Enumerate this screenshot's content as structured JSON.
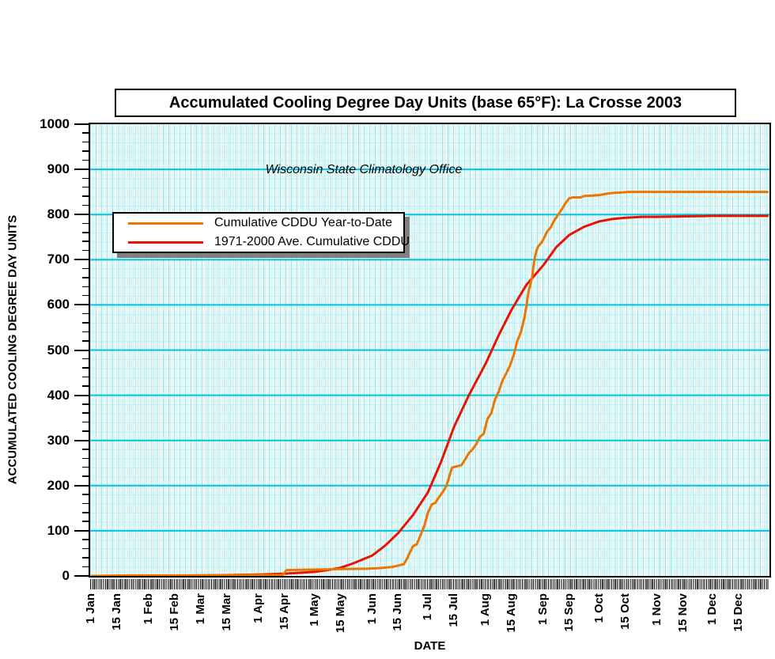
{
  "title": "Accumulated Cooling Degree Day Units (base 65°F): La Crosse 2003",
  "annotation": "Wisconsin State Climatology Office",
  "axes": {
    "x_label": "DATE",
    "y_label": "ACCUMULATED COOLING DEGREE DAY UNITS",
    "y_min": 0,
    "y_max": 1000,
    "y_major_step": 100,
    "y_minor_step": 20
  },
  "colors": {
    "ytd_line": "#ee7600",
    "average_line": "#e81400",
    "grid_major": "#00c4e4",
    "grid_minor": "#c8f4f6",
    "stripe": "#bef2f4",
    "legend_shadow": "#808080"
  },
  "chart_data": {
    "type": "line",
    "title": "Accumulated Cooling Degree Day Units (base 65°F): La Crosse 2003",
    "xlabel": "DATE",
    "ylabel": "ACCUMULATED COOLING DEGREE DAY UNITS",
    "ylim": [
      0,
      1000
    ],
    "x_unit": "day_of_year",
    "grid": true,
    "legend_position": "upper-left-inside",
    "y_ticks": [
      0,
      100,
      200,
      300,
      400,
      500,
      600,
      700,
      800,
      900,
      1000
    ],
    "x_ticks": [
      {
        "day": 1,
        "label": "1 Jan"
      },
      {
        "day": 15,
        "label": "15 Jan"
      },
      {
        "day": 32,
        "label": "1 Feb"
      },
      {
        "day": 46,
        "label": "15 Feb"
      },
      {
        "day": 60,
        "label": "1 Mar"
      },
      {
        "day": 74,
        "label": "15 Mar"
      },
      {
        "day": 91,
        "label": "1 Apr"
      },
      {
        "day": 105,
        "label": "15 Apr"
      },
      {
        "day": 121,
        "label": "1 May"
      },
      {
        "day": 135,
        "label": "15 May"
      },
      {
        "day": 152,
        "label": "1 Jun"
      },
      {
        "day": 166,
        "label": "15 Jun"
      },
      {
        "day": 182,
        "label": "1 Jul"
      },
      {
        "day": 196,
        "label": "15 Jul"
      },
      {
        "day": 213,
        "label": "1 Aug"
      },
      {
        "day": 227,
        "label": "15 Aug"
      },
      {
        "day": 244,
        "label": "1 Sep"
      },
      {
        "day": 258,
        "label": "15 Sep"
      },
      {
        "day": 274,
        "label": "1 Oct"
      },
      {
        "day": 288,
        "label": "15 Oct"
      },
      {
        "day": 305,
        "label": "1 Nov"
      },
      {
        "day": 319,
        "label": "15 Nov"
      },
      {
        "day": 335,
        "label": "1 Dec"
      },
      {
        "day": 349,
        "label": "15 Dec"
      }
    ],
    "series": [
      {
        "name": "Cumulative CDDU Year-to-Date",
        "color": "#ee7600",
        "points": [
          [
            1,
            0
          ],
          [
            20,
            1
          ],
          [
            50,
            1
          ],
          [
            90,
            2
          ],
          [
            104,
            2
          ],
          [
            106,
            13
          ],
          [
            120,
            14
          ],
          [
            134,
            15
          ],
          [
            149,
            16
          ],
          [
            155,
            17
          ],
          [
            160,
            19
          ],
          [
            163,
            20
          ],
          [
            166,
            23
          ],
          [
            169,
            26
          ],
          [
            170,
            33
          ],
          [
            171,
            40
          ],
          [
            172,
            50
          ],
          [
            173,
            58
          ],
          [
            174,
            66
          ],
          [
            176,
            70
          ],
          [
            177,
            80
          ],
          [
            178,
            90
          ],
          [
            179,
            100
          ],
          [
            180,
            110
          ],
          [
            181,
            125
          ],
          [
            182,
            140
          ],
          [
            184,
            158
          ],
          [
            186,
            162
          ],
          [
            188,
            175
          ],
          [
            190,
            186
          ],
          [
            192,
            200
          ],
          [
            194,
            228
          ],
          [
            195,
            240
          ],
          [
            198,
            243
          ],
          [
            200,
            245
          ],
          [
            202,
            258
          ],
          [
            204,
            272
          ],
          [
            206,
            280
          ],
          [
            208,
            292
          ],
          [
            210,
            308
          ],
          [
            212,
            315
          ],
          [
            214,
            348
          ],
          [
            216,
            360
          ],
          [
            218,
            390
          ],
          [
            220,
            408
          ],
          [
            222,
            432
          ],
          [
            224,
            448
          ],
          [
            226,
            465
          ],
          [
            228,
            488
          ],
          [
            230,
            520
          ],
          [
            232,
            540
          ],
          [
            234,
            575
          ],
          [
            235,
            600
          ],
          [
            236,
            628
          ],
          [
            237,
            645
          ],
          [
            238,
            662
          ],
          [
            239,
            695
          ],
          [
            240,
            715
          ],
          [
            241,
            728
          ],
          [
            243,
            738
          ],
          [
            244,
            745
          ],
          [
            246,
            762
          ],
          [
            248,
            772
          ],
          [
            250,
            788
          ],
          [
            252,
            800
          ],
          [
            254,
            812
          ],
          [
            256,
            826
          ],
          [
            258,
            836
          ],
          [
            260,
            838
          ],
          [
            264,
            838
          ],
          [
            266,
            841
          ],
          [
            270,
            842
          ],
          [
            274,
            843
          ],
          [
            278,
            846
          ],
          [
            282,
            848
          ],
          [
            286,
            849
          ],
          [
            290,
            850
          ],
          [
            305,
            850
          ],
          [
            320,
            850
          ],
          [
            335,
            850
          ],
          [
            350,
            850
          ],
          [
            365,
            850
          ]
        ]
      },
      {
        "name": "1971-2000 Ave. Cumulative CDDU",
        "color": "#e81400",
        "points": [
          [
            1,
            0
          ],
          [
            32,
            0
          ],
          [
            60,
            1
          ],
          [
            75,
            2
          ],
          [
            91,
            3
          ],
          [
            105,
            5
          ],
          [
            121,
            9
          ],
          [
            128,
            13
          ],
          [
            135,
            18
          ],
          [
            142,
            28
          ],
          [
            152,
            45
          ],
          [
            159,
            67
          ],
          [
            166,
            95
          ],
          [
            174,
            135
          ],
          [
            182,
            185
          ],
          [
            189,
            252
          ],
          [
            196,
            330
          ],
          [
            204,
            400
          ],
          [
            213,
            470
          ],
          [
            220,
            533
          ],
          [
            227,
            590
          ],
          [
            235,
            645
          ],
          [
            244,
            688
          ],
          [
            251,
            728
          ],
          [
            258,
            755
          ],
          [
            266,
            773
          ],
          [
            274,
            785
          ],
          [
            281,
            790
          ],
          [
            288,
            793
          ],
          [
            297,
            795
          ],
          [
            305,
            795
          ],
          [
            319,
            796
          ],
          [
            335,
            797
          ],
          [
            349,
            797
          ],
          [
            365,
            797
          ]
        ]
      }
    ]
  }
}
